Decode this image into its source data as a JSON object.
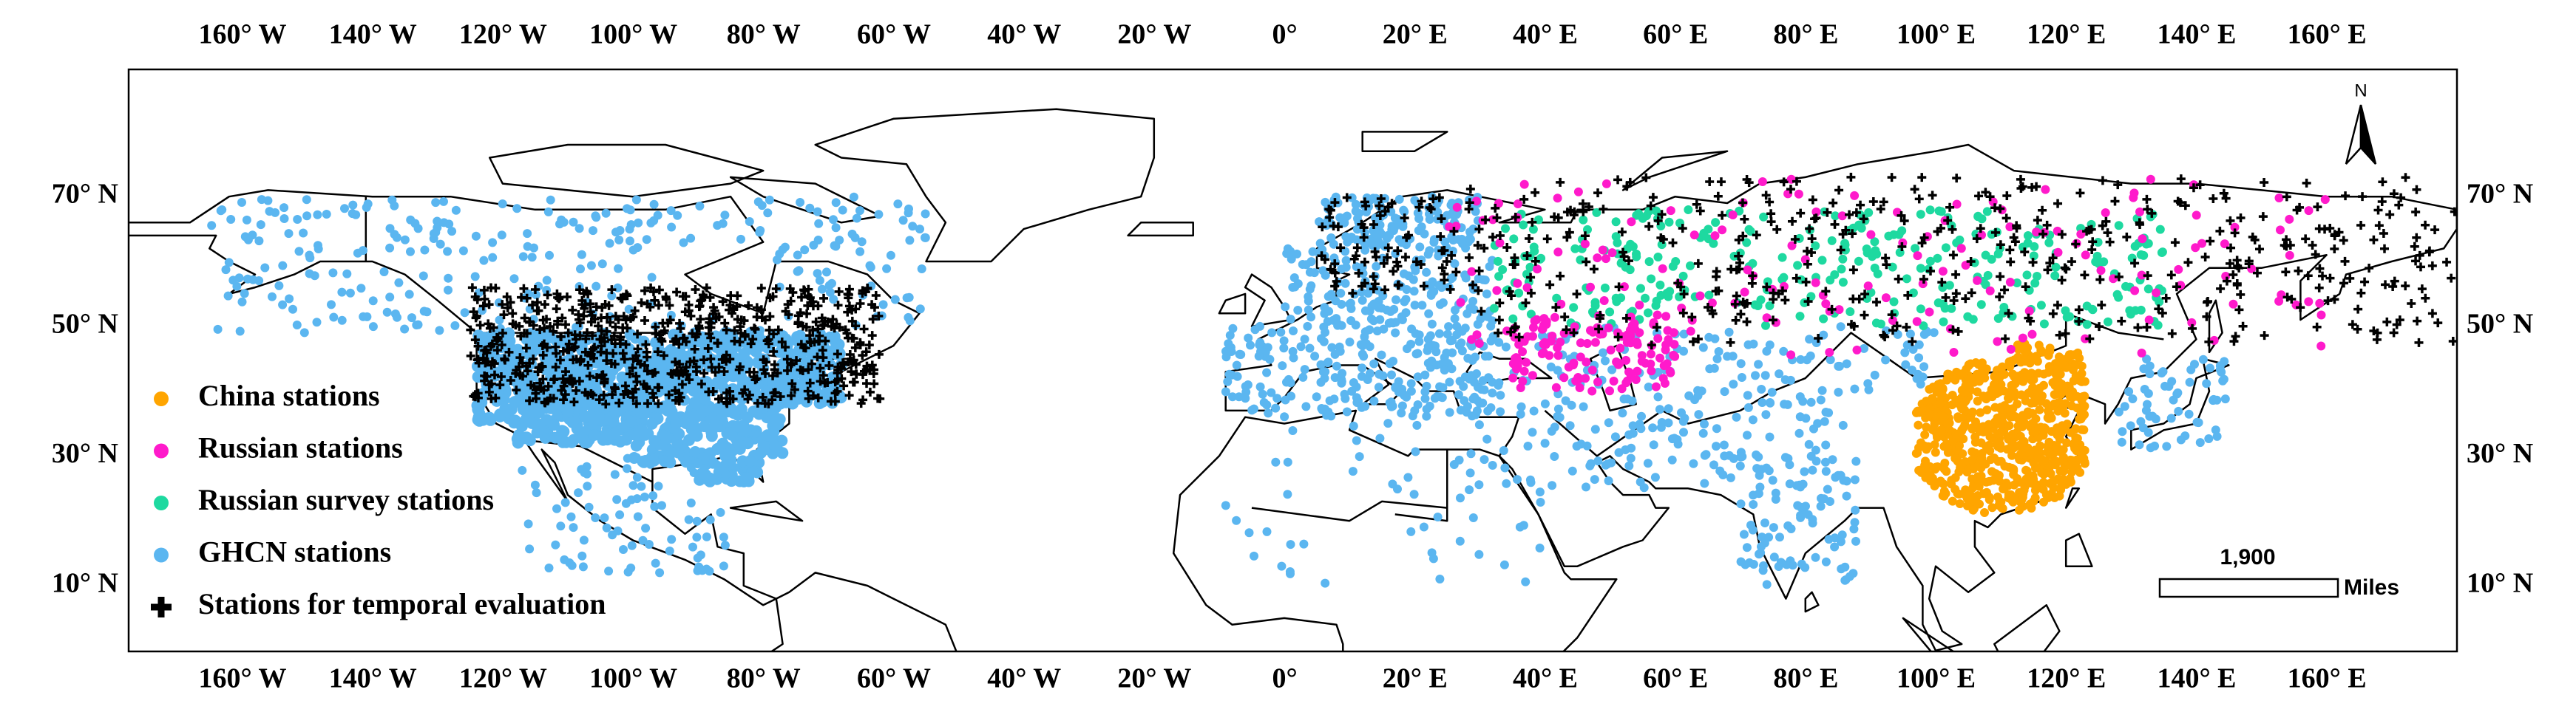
{
  "map": {
    "longitude_labels": [
      "160° W",
      "140° W",
      "120° W",
      "100° W",
      "80° W",
      "60° W",
      "40° W",
      "20° W",
      "0°",
      "20° E",
      "40° E",
      "60° E",
      "80° E",
      "100° E",
      "120° E",
      "140° E",
      "160° E"
    ],
    "latitude_labels": [
      "70° N",
      "50° N",
      "30° N",
      "10° N"
    ],
    "legend": [
      {
        "label": "China stations",
        "color": "#ffa500"
      },
      {
        "label": "Russian stations",
        "color": "#ff1acb"
      },
      {
        "label": "Russian survey stations",
        "color": "#1ed9a0"
      },
      {
        "label": "GHCN stations",
        "color": "#5bb6f0"
      },
      {
        "label": "Stations for temporal evaluation",
        "color": "#000000"
      }
    ],
    "north_label": "N",
    "scale_bar": {
      "label": "1,900",
      "unit": "Miles"
    }
  }
}
